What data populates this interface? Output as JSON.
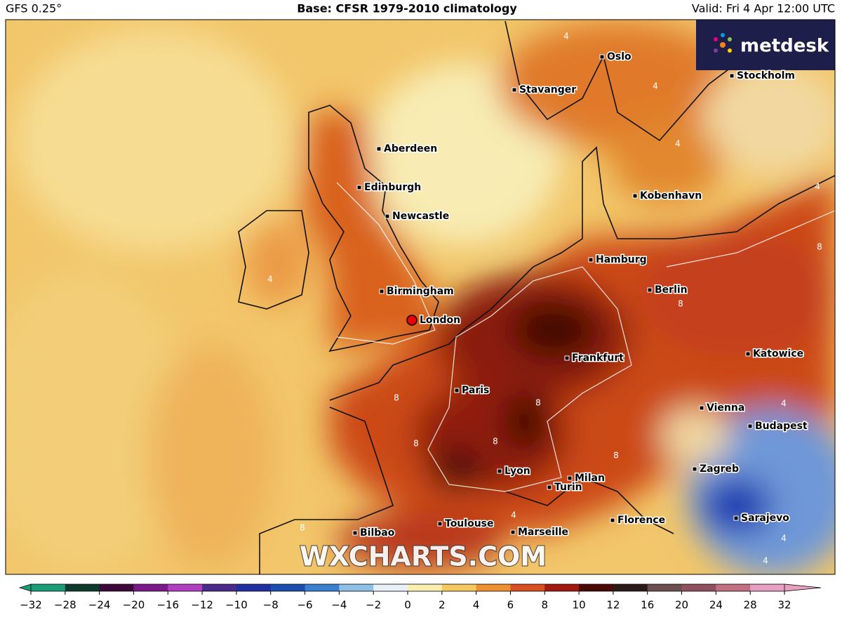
{
  "header": {
    "model": "GFS 0.25°",
    "base": "Base: CFSR 1979-2010 climatology",
    "valid": "Valid: Fri 4 Apr 12:00 UTC"
  },
  "logo": "metdesk",
  "watermark": "WXCHARTS.COM",
  "cities": [
    "Oslo",
    "Stavanger",
    "Stockholm",
    "Aberdeen",
    "Edinburgh",
    "Newcastle",
    "Kobenhavn",
    "Hamburg",
    "Berlin",
    "Birmingham",
    "London",
    "Frankfurt",
    "Katowice",
    "Paris",
    "Vienna",
    "Budapest",
    "Zagreb",
    "Lyon",
    "Milan",
    "Turin",
    "Florence",
    "Sarajevo",
    "Bilbao",
    "Toulouse",
    "Marseille"
  ],
  "contour_labels": [
    4,
    4,
    4,
    4,
    4,
    8,
    8,
    8,
    8,
    8,
    8,
    8,
    4,
    4,
    4,
    8,
    4
  ],
  "colorbar": {
    "ticks": [
      {
        "value": -32,
        "label": "−32"
      },
      {
        "value": -28,
        "label": "−28"
      },
      {
        "value": -24,
        "label": "−24"
      },
      {
        "value": -20,
        "label": "−20"
      },
      {
        "value": -16,
        "label": "−16"
      },
      {
        "value": -12,
        "label": "−12"
      },
      {
        "value": -10,
        "label": "−10"
      },
      {
        "value": -8,
        "label": "−8"
      },
      {
        "value": -6,
        "label": "−6"
      },
      {
        "value": -4,
        "label": "−4"
      },
      {
        "value": -2,
        "label": "−2"
      },
      0,
      2,
      4,
      6,
      8,
      10,
      12,
      16,
      20,
      24,
      28,
      32
    ],
    "colors": [
      "#1a9e77",
      "#0e3b2c",
      "#3b0a3a",
      "#7a1a8a",
      "#b040c0",
      "#4a2a8a",
      "#2030a0",
      "#1a4fb0",
      "#3a80d0",
      "#90c0e8",
      "#e8f0f8",
      "#fbefb0",
      "#f5c860",
      "#ef9030",
      "#d85020",
      "#a01a10",
      "#4a0a08",
      "#2a1a1a",
      "#6a5050",
      "#905060",
      "#c07080",
      "#e8a0c0"
    ]
  }
}
